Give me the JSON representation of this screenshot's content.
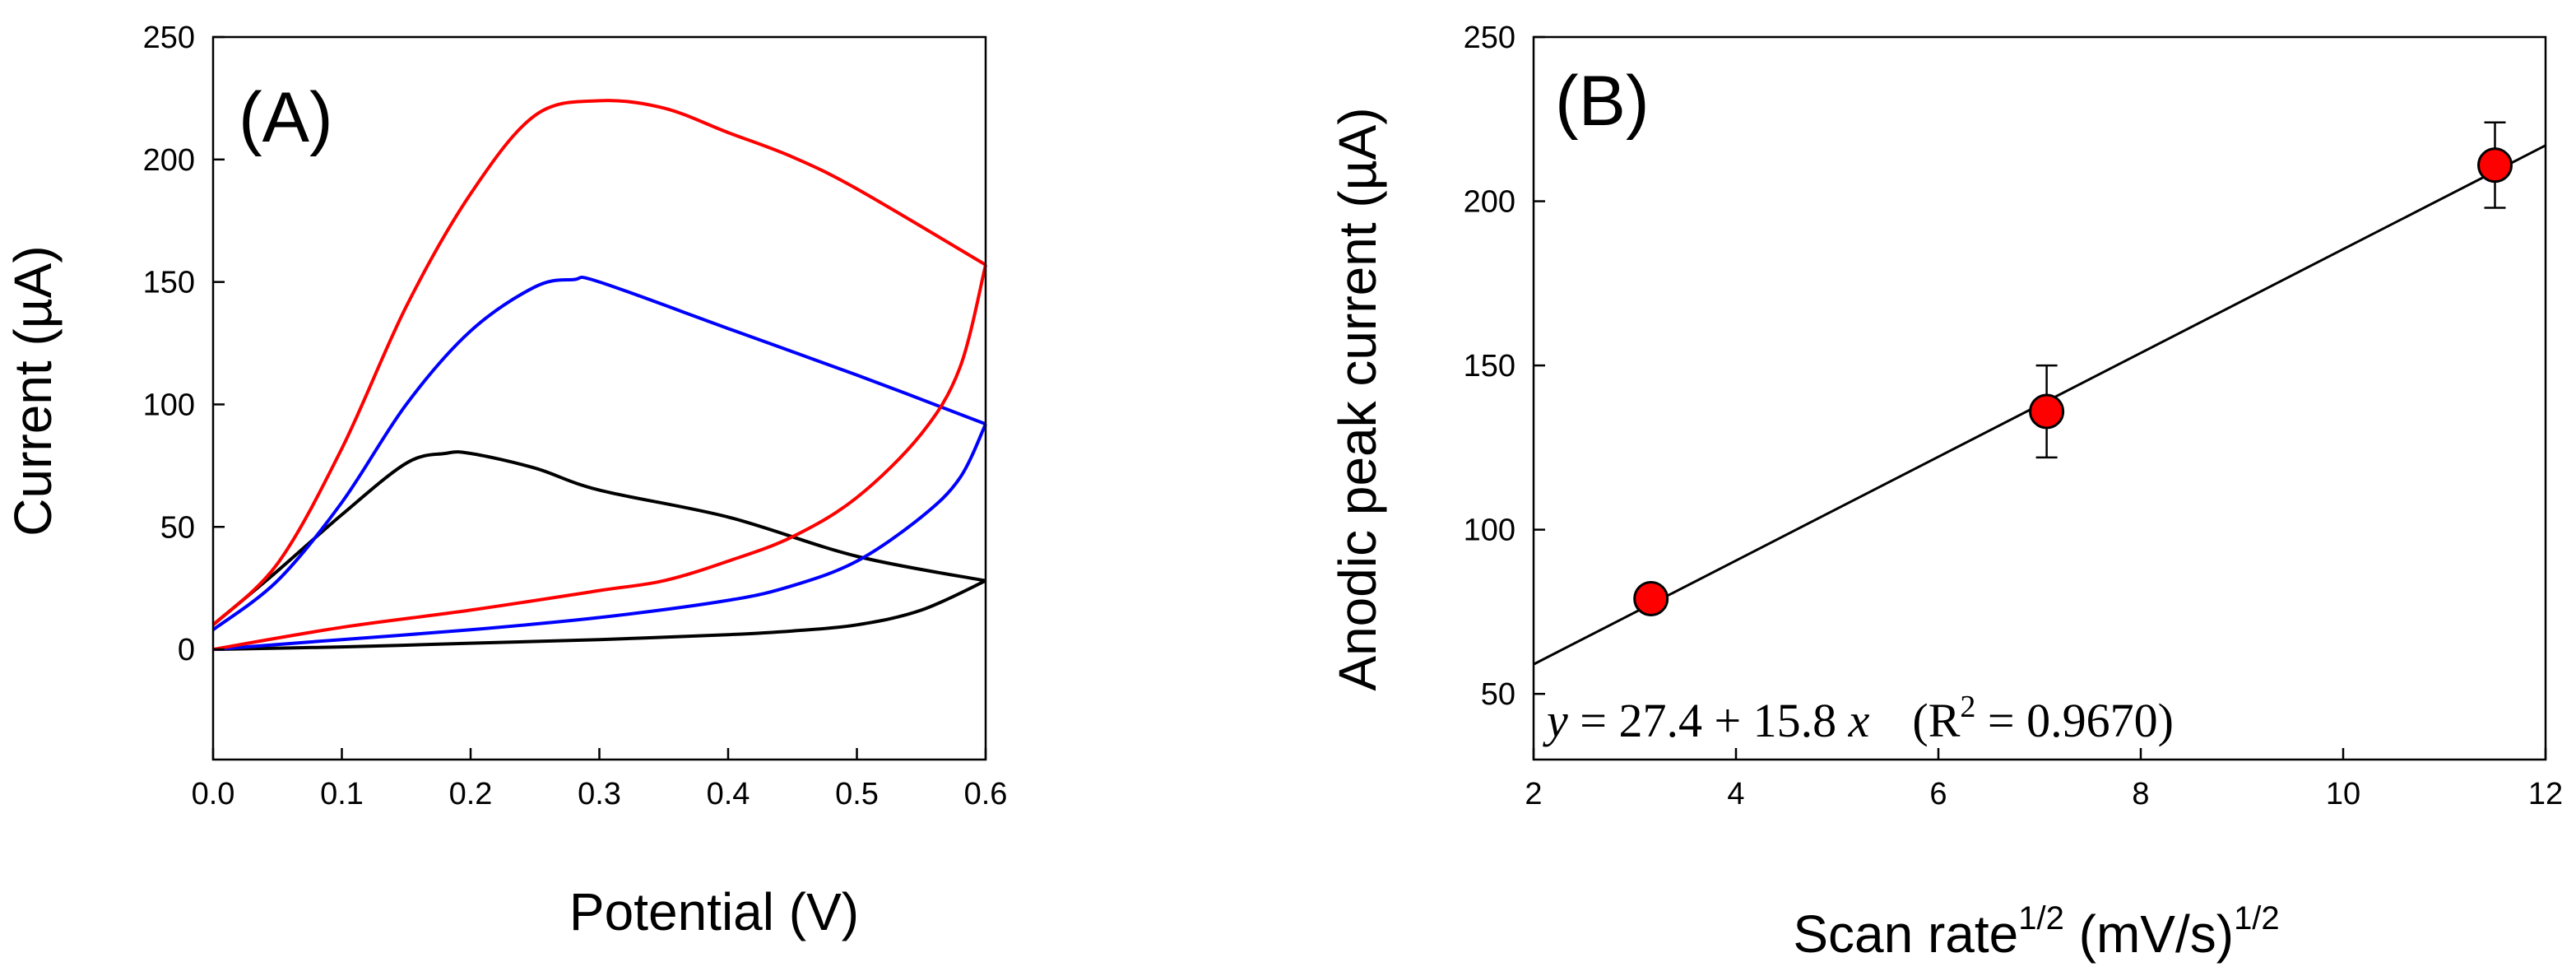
{
  "chart_data": [
    {
      "type": "line",
      "panel_label": "(A)",
      "xlabel": "Potential (V)",
      "ylabel": "Current (µA)",
      "xlim": [
        0.0,
        0.6
      ],
      "ylim": [
        -45,
        250
      ],
      "xticks": [
        "0.0",
        "0.1",
        "0.2",
        "0.3",
        "0.4",
        "0.5",
        "0.6"
      ],
      "yticks": [
        "0",
        "50",
        "100",
        "150",
        "200",
        "250"
      ],
      "grid": false,
      "series": [
        {
          "name": "black",
          "color": "#000000",
          "forward": [
            [
              0,
              0
            ],
            [
              0.1,
              1
            ],
            [
              0.2,
              2.5
            ],
            [
              0.3,
              4
            ],
            [
              0.4,
              6
            ],
            [
              0.45,
              7.5
            ],
            [
              0.5,
              10
            ],
            [
              0.55,
              16
            ],
            [
              0.6,
              28
            ]
          ],
          "reverse": [
            [
              0.6,
              28
            ],
            [
              0.5,
              38
            ],
            [
              0.4,
              54
            ],
            [
              0.3,
              65
            ],
            [
              0.25,
              74
            ],
            [
              0.2,
              80
            ],
            [
              0.18,
              80
            ],
            [
              0.15,
              76
            ],
            [
              0.1,
              55
            ],
            [
              0.05,
              32
            ],
            [
              0,
              10
            ]
          ]
        },
        {
          "name": "blue",
          "color": "#0000ff",
          "forward": [
            [
              0,
              0
            ],
            [
              0.1,
              4
            ],
            [
              0.2,
              8
            ],
            [
              0.3,
              13
            ],
            [
              0.4,
              20
            ],
            [
              0.45,
              26
            ],
            [
              0.5,
              36
            ],
            [
              0.55,
              54
            ],
            [
              0.58,
              70
            ],
            [
              0.6,
              92
            ]
          ],
          "reverse": [
            [
              0.6,
              92
            ],
            [
              0.5,
              112
            ],
            [
              0.4,
              131
            ],
            [
              0.3,
              150
            ],
            [
              0.28,
              151
            ],
            [
              0.25,
              148
            ],
            [
              0.2,
              130
            ],
            [
              0.15,
              100
            ],
            [
              0.1,
              60
            ],
            [
              0.05,
              28
            ],
            [
              0,
              8
            ]
          ]
        },
        {
          "name": "red",
          "color": "#ff0000",
          "forward": [
            [
              0,
              0
            ],
            [
              0.1,
              9
            ],
            [
              0.2,
              16
            ],
            [
              0.3,
              24
            ],
            [
              0.35,
              28
            ],
            [
              0.4,
              36
            ],
            [
              0.45,
              46
            ],
            [
              0.5,
              62
            ],
            [
              0.55,
              88
            ],
            [
              0.58,
              115
            ],
            [
              0.6,
              157
            ]
          ],
          "reverse": [
            [
              0.6,
              157
            ],
            [
              0.5,
              188
            ],
            [
              0.45,
              201
            ],
            [
              0.4,
              211
            ],
            [
              0.35,
              221
            ],
            [
              0.3,
              224
            ],
            [
              0.25,
              218
            ],
            [
              0.2,
              186
            ],
            [
              0.15,
              140
            ],
            [
              0.1,
              82
            ],
            [
              0.05,
              35
            ],
            [
              0,
              10
            ]
          ]
        }
      ]
    },
    {
      "type": "scatter",
      "panel_label": "(B)",
      "xlabel": "Scan rate",
      "xlabel_sup": "1/2",
      "xlabel_unit": " (mV/s)",
      "xlabel_unit_sup": "1/2",
      "ylabel": "Anodic peak current (µA)",
      "xlim": [
        2,
        12
      ],
      "ylim": [
        30,
        250
      ],
      "xticks": [
        "2",
        "4",
        "6",
        "8",
        "10",
        "12"
      ],
      "yticks": [
        "50",
        "100",
        "150",
        "200",
        "250"
      ],
      "grid": false,
      "points": [
        {
          "x": 3.16,
          "y": 79,
          "err": 0
        },
        {
          "x": 7.07,
          "y": 136,
          "err": 14
        },
        {
          "x": 11.5,
          "y": 211,
          "err": 13
        }
      ],
      "point_color": "#ff0000",
      "fit": {
        "intercept": 27.4,
        "slope": 15.8
      },
      "equation": {
        "y_var": "y",
        "rhs": " = 27.4 + 15.8 ",
        "x_var": "x",
        "r2_open": "(R",
        "r2_sup": "2",
        "r2_close": " = 0.9670)"
      }
    }
  ]
}
